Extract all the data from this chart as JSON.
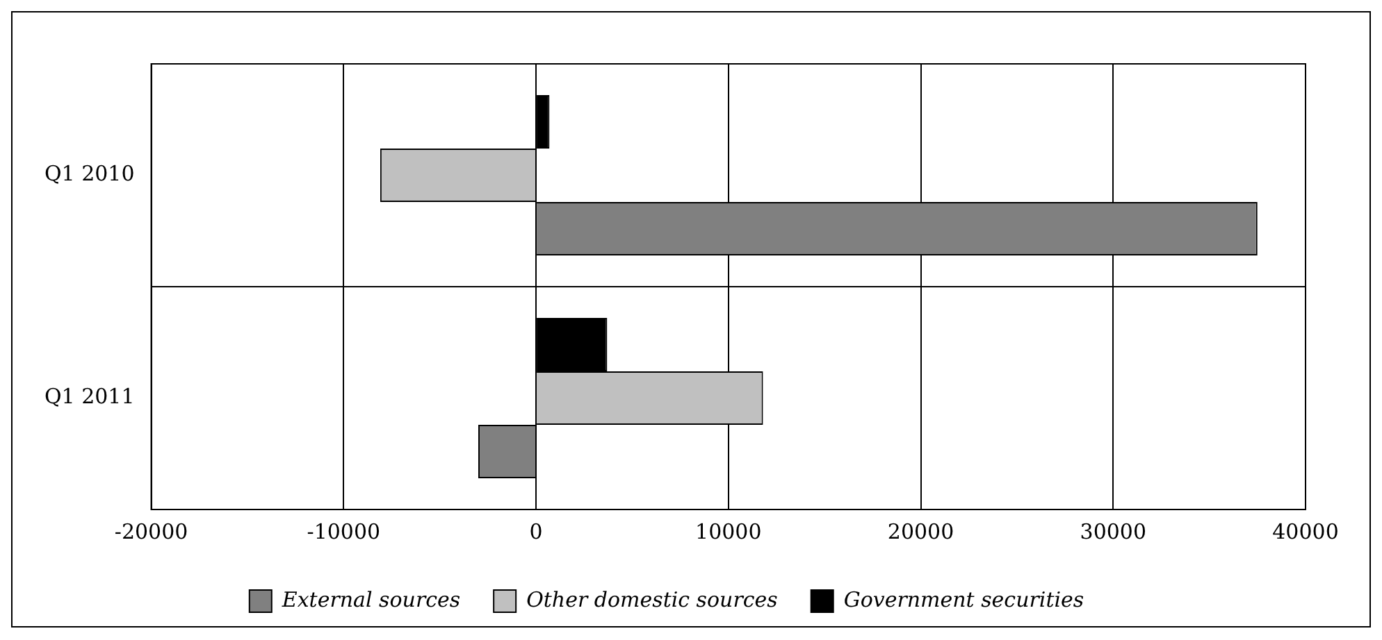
{
  "chart_data": {
    "type": "bar",
    "orientation": "horizontal",
    "categories": [
      "Q1 2010",
      "Q1 2011"
    ],
    "series": [
      {
        "name": "External sources",
        "color": "#808080",
        "values": [
          37500,
          -3000
        ]
      },
      {
        "name": "Other domestic sources",
        "color": "#c0c0c0",
        "values": [
          -8100,
          11800
        ]
      },
      {
        "name": "Government securities",
        "color": "#000000",
        "values": [
          700,
          3700
        ]
      }
    ],
    "xlim": [
      -20000,
      40000
    ],
    "xticks": [
      -20000,
      -10000,
      0,
      10000,
      20000,
      30000,
      40000
    ],
    "grid": true,
    "legend": "bottom"
  }
}
